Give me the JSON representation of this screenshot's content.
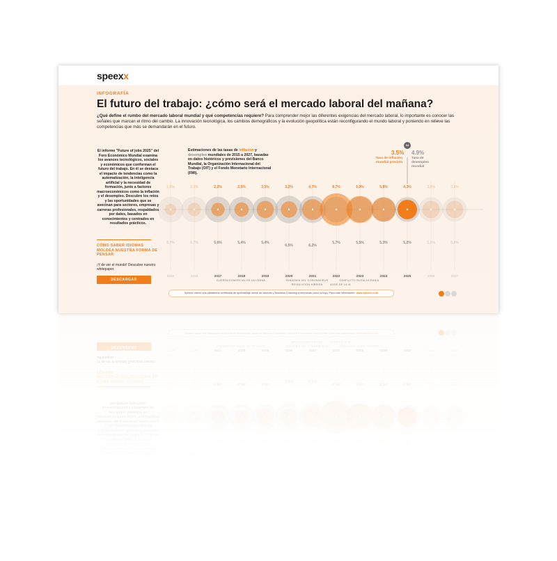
{
  "brand": {
    "name": "speex",
    "accent": "x"
  },
  "tag": "INFOGRAFÍA",
  "title": "El futuro del trabajo: ¿cómo será el mercado laboral del mañana?",
  "intro": {
    "bold": "¿Qué define el rumbo del mercado laboral mundial y qué competencias requiere?",
    "rest": " Para comprender mejor las diferentes exigencias del mercado laboral, lo importante es conocer las señales que marcan el ritmo del cambio. La innovación tecnológica, los cambios demográficos y la evolución geopolítica están reconfigurando el mundo laboral y poniendo en relieve las competencias que más se demandarán en el futuro."
  },
  "left": {
    "para": "El informe \"Future of jobs 2025\" del Foro Económico Mundial examina los avances tecnológicos, sociales y económicos que conforman el futuro del trabajo. En él se destaca el impacto de tendencias como la automatización, la inteligencia artificial y la necesidad de formación, junto a factores macroeconómicos como la inflación y el desempleo. Descubre los retos y las oportunidades que se avecinan para sectores, empresas y carreras profesionales, respaldados por datos, basados en conocimientos y centrados en resultados prácticos.",
    "cta_head": "CÓMO SABER IDIOMAS MOLDEA NUESTRA FORMA DE PENSAR",
    "cta_text": "¡Y de ver el mundo! Descubre nuestro whitepaper.",
    "button": "DESCARGAR"
  },
  "chart_intro": {
    "p1": "Estimaciones de las tasas de ",
    "infl": "inflación",
    "p2": " y ",
    "des": "desempleo",
    "p3": " mundiales de 2015 a 2027, basadas en datos históricos y previsiones del Banco Mundial, la Organización Internacional del Trabajo (OIT) y el Fondo Monetario Internacional (FMI)."
  },
  "legend": {
    "badge": "04",
    "inflation_value": "3.5%",
    "inflation_label": "Tasa de inflación mundial prevista",
    "unemployment_value": "4.9%",
    "unemployment_label": "Tasa de desempleo mundial"
  },
  "chart_data": {
    "type": "scatter",
    "x": [
      "2015",
      "2016",
      "2017",
      "2018",
      "2019",
      "2020",
      "2021",
      "2022",
      "2023",
      "2024",
      "2025",
      "2026",
      "2027"
    ],
    "series": [
      {
        "values": [
          1.5,
          2.2,
          2.2,
          2.5,
          3.5,
          3.2,
          4.7,
          8.7,
          6.9,
          5.8,
          4.3,
          3.6,
          3.5
        ]
      },
      {
        "values": [
          5.7,
          5.7,
          5.6,
          5.4,
          5.4,
          6.5,
          6.2,
          5.7,
          5.5,
          5.3,
          5.2,
          5.1,
          5.0
        ]
      }
    ],
    "labels_inflation": [
      "1,5%",
      "2,2%",
      "2,2%",
      "2,5%",
      "3,5%",
      "3,2%",
      "4,7%",
      "8,7%",
      "6,9%",
      "5,8%",
      "4,3%",
      "3,6%",
      "3,5%"
    ],
    "labels_unemployment": [
      "5,7%",
      "5,7%",
      "5,6%",
      "5,4%",
      "5,4%",
      "6,5%",
      "6,2%",
      "5,7%",
      "5,5%",
      "5,3%",
      "5,2%",
      "5,1%",
      "5,0%"
    ],
    "event_labels": [
      "GUERRA COMERCIAL EE.UU-CHINA",
      "PANDEMIA DEL CORONAVIRUS",
      "REVOLUCIÓN HÍBRIDA",
      "CONFLICTO RUSIA-UCRANIA",
      "AUGE DE LA IA"
    ],
    "highlight_year": "2025",
    "colors": {
      "inflation": "#f07d1a",
      "unemployment": "#999999"
    }
  },
  "footer": {
    "text": "Speexx ofrece una plataforma certificada de aprendizaje online de idiomas y Business Coaching a empresas como la tuya. Para más información: ",
    "link": "www.speexx.com"
  }
}
